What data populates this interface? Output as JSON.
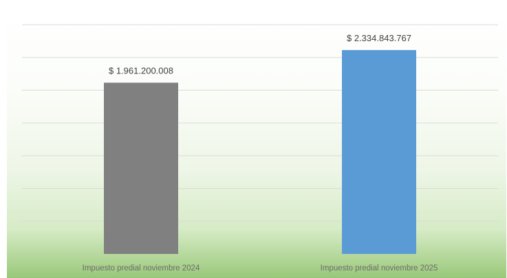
{
  "chart_data": {
    "type": "bar",
    "categories": [
      "Impuesto predial noviembre 2024",
      "Impuesto predial noviembre 2025"
    ],
    "values": [
      1961200008,
      2334843767
    ],
    "data_labels": [
      "$ 1.961.200.008",
      "$ 2.334.843.767"
    ],
    "colors": [
      "#808080",
      "#5b9bd5"
    ],
    "ylim": [
      0,
      2625000000
    ],
    "grid": true,
    "legend": "none"
  }
}
